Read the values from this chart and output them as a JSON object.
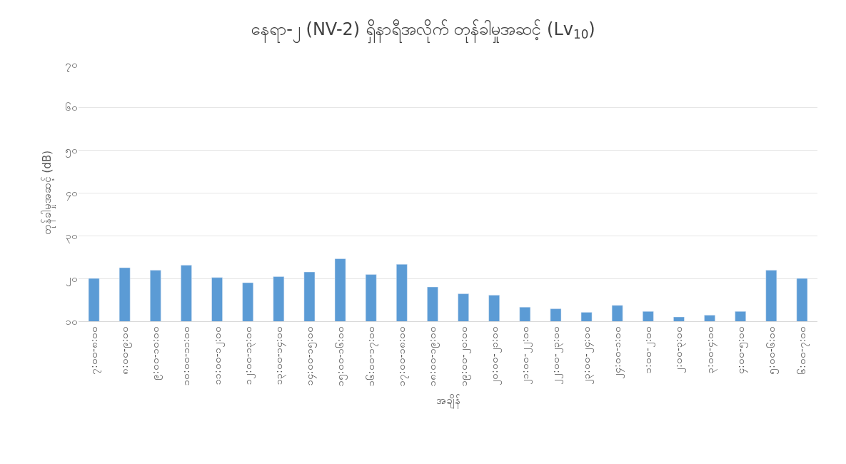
{
  "chart_data": {
    "type": "bar",
    "title": "နေရာ-၂ (NV-2) ရှိနာရီအလိုက် တုန်ခါမှုအဆင့် (Lv$_{10}$)",
    "xlabel": "အချိန်",
    "ylabel": "တုန်ခါမှုအဆင့် (dB)",
    "categories": [
      "၇:၀၀-၈:၀၀",
      "၈:၀၀-၉:၀၀",
      "၉:၀၀-၁၀:၀၀",
      "၁၀:၀၀-၁၁:၀၀",
      "၁၁:၀၀-၁၂:၀၀",
      "၁၂:၀၀-၁၃:၀၀",
      "၁၃:၀၀-၁၄:၀၀",
      "၁၄:၀၀-၁၅:၀၀",
      "၁၅:၀၀-၁၆:၀၀",
      "၁၆:၀၀-၁၇:၀၀",
      "၁၇:၀၀-၁၈:၀၀",
      "၁၈:၀၀-၁၉:၀၀",
      "၁၉:၀၀-၂၀:၀၀",
      "၂၀:၀၀-၂၁:၀၀",
      "၂၁:၀၀-၂၂:၀၀",
      "၂၂:၀၀-၂၃:၀၀",
      "၂၃:၀၀-၂၄:၀၀",
      "၂၄:၀၀-၁:၀၀",
      "၁:၀၀-၂:၀၀",
      "၂:၀၀-၃:၀၀",
      "၃:၀၀-၄:၀၀",
      "၄:၀၀-၅:၀၀",
      "၅:၀၀-၆:၀၀",
      "၆:၀၀-၇:၀၀"
    ],
    "values": [
      20.0,
      22.5,
      21.9,
      23.1,
      20.2,
      19.0,
      20.4,
      21.5,
      24.6,
      20.9,
      23.3,
      18.0,
      16.4,
      16.1,
      13.3,
      12.9,
      12.1,
      13.7,
      12.3,
      11.0,
      11.4,
      12.3,
      21.9,
      20.0
    ],
    "color": "#5b9bd5",
    "ylim": [
      10,
      70
    ],
    "yticks": [
      {
        "value": 10,
        "label": "၁၀"
      },
      {
        "value": 20,
        "label": "၂၀"
      },
      {
        "value": 30,
        "label": "၃၀"
      },
      {
        "value": 40,
        "label": "၄၀"
      },
      {
        "value": 50,
        "label": "၅၀"
      },
      {
        "value": 60,
        "label": "၆၀"
      },
      {
        "value": 70,
        "label": "၇၀"
      }
    ],
    "grid": "y",
    "legend": false
  }
}
